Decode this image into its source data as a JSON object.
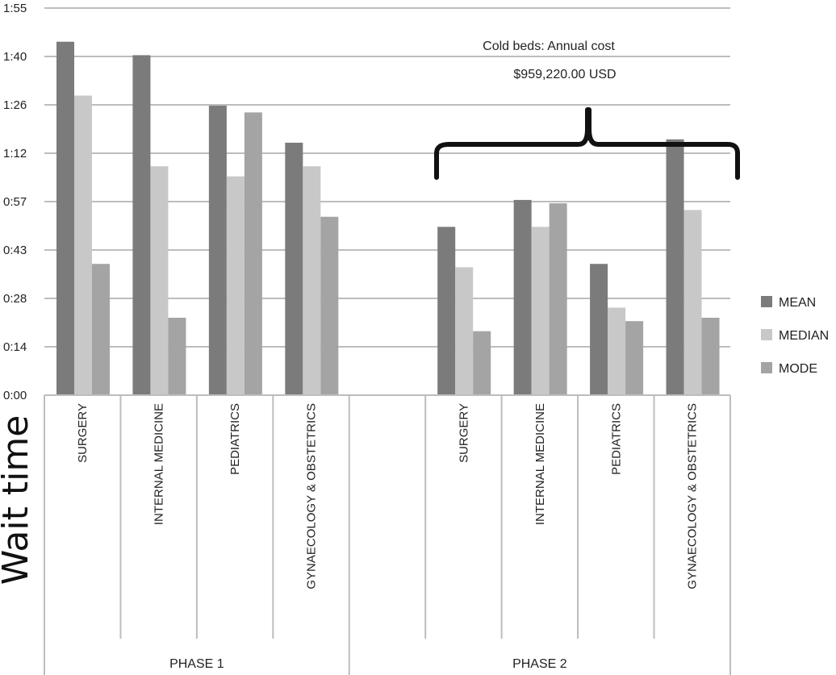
{
  "chart_data": {
    "type": "bar",
    "ylabel": "Wait time",
    "yticks": [
      "0:00",
      "0:14",
      "0:28",
      "0:43",
      "0:57",
      "1:12",
      "1:26",
      "1:40",
      "1:55"
    ],
    "ylim_minutes": [
      0,
      115
    ],
    "grid": true,
    "legend_position": "right",
    "groups": [
      {
        "name": "PHASE 1",
        "categories": [
          "SURGERY",
          "INTERNAL MEDICINE",
          "PEDIATRICS",
          "GYNAECOLOGY & OBSTETRICS"
        ],
        "series": [
          {
            "name": "MEAN",
            "values": [
              105,
              101,
              86,
              75
            ]
          },
          {
            "name": "MEDIAN",
            "values": [
              89,
              68,
              65,
              68
            ]
          },
          {
            "name": "MODE",
            "values": [
              39,
              23,
              84,
              53
            ]
          }
        ]
      },
      {
        "name": "PHASE 2",
        "categories": [
          "",
          "SURGERY",
          "INTERNAL MEDICINE",
          "PEDIATRICS",
          "GYNAECOLOGY & OBSTETRICS"
        ],
        "series": [
          {
            "name": "MEAN",
            "values": [
              null,
              50,
              58,
              39,
              76
            ]
          },
          {
            "name": "MEDIAN",
            "values": [
              null,
              38,
              50,
              26,
              55
            ]
          },
          {
            "name": "MODE",
            "values": [
              null,
              19,
              57,
              22,
              23
            ]
          }
        ]
      }
    ],
    "series_colors": {
      "MEAN": "#7b7b7b",
      "MEDIAN": "#c8c8c8",
      "MODE": "#a4a4a4"
    },
    "annotation": {
      "line1": "Cold beds: Annual cost",
      "line2": "$959,220.00  USD"
    }
  }
}
